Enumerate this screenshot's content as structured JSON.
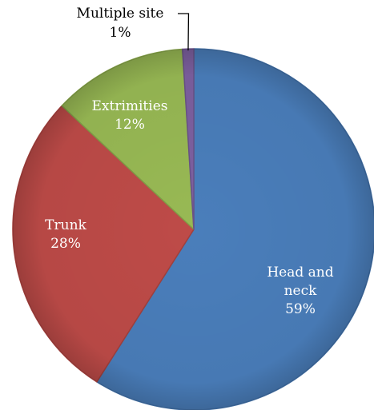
{
  "chart_data": {
    "type": "pie",
    "title": "",
    "slices": [
      {
        "name": "Head and neck",
        "label_lines": [
          "Head and",
          "neck"
        ],
        "value": 59,
        "value_label": "59%",
        "color": "#4a7ebb"
      },
      {
        "name": "Trunk",
        "label_lines": [
          "Trunk"
        ],
        "value": 28,
        "value_label": "28%",
        "color": "#be4b48"
      },
      {
        "name": "Extrimities",
        "label_lines": [
          "Extrimities"
        ],
        "value": 12,
        "value_label": "12%",
        "color": "#98b954"
      },
      {
        "name": "Multiple site",
        "label_lines": [
          "Multiple site"
        ],
        "value": 1,
        "value_label": "1%",
        "color": "#7d60a0"
      }
    ],
    "start_angle": "12 o'clock",
    "direction": "clockwise",
    "legend": "none",
    "label_colors": {
      "inside": "#ffffff",
      "outside": "#000000"
    }
  }
}
